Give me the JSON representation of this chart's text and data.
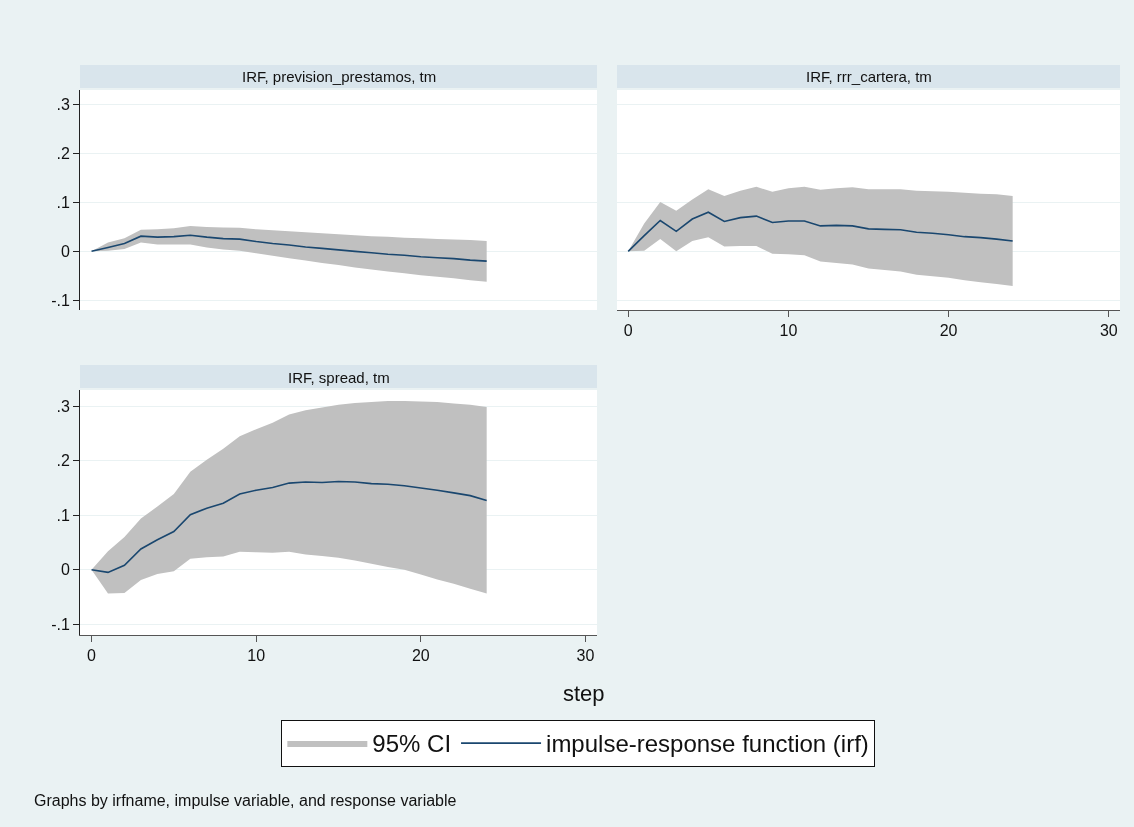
{
  "chart_data": [
    {
      "type": "line",
      "title": "IRF, prevision_prestamos, tm",
      "x": [
        0,
        1,
        2,
        3,
        4,
        5,
        6,
        7,
        8,
        9,
        10,
        11,
        12,
        13,
        14,
        15,
        16,
        17,
        18,
        19,
        20,
        21,
        22,
        23,
        24
      ],
      "series": [
        {
          "color": "#1a476f",
          "values": [
            0,
            0.008,
            0.016,
            0.031,
            0.029,
            0.03,
            0.033,
            0.029,
            0.026,
            0.025,
            0.02,
            0.016,
            0.013,
            0.009,
            0.006,
            0.003,
            0,
            -0.003,
            -0.006,
            -0.008,
            -0.011,
            -0.013,
            -0.015,
            -0.018,
            -0.02
          ],
          "lower": [
            0,
            0.001,
            0.005,
            0.018,
            0.014,
            0.014,
            0.014,
            0.008,
            0.004,
            0.001,
            -0.004,
            -0.009,
            -0.014,
            -0.019,
            -0.024,
            -0.028,
            -0.033,
            -0.037,
            -0.041,
            -0.045,
            -0.049,
            -0.052,
            -0.055,
            -0.059,
            -0.062
          ],
          "upper": [
            0,
            0.018,
            0.027,
            0.044,
            0.045,
            0.047,
            0.052,
            0.05,
            0.049,
            0.048,
            0.045,
            0.043,
            0.041,
            0.039,
            0.037,
            0.035,
            0.033,
            0.031,
            0.03,
            0.028,
            0.027,
            0.025,
            0.024,
            0.023,
            0.021
          ]
        }
      ],
      "xlim": [
        -0.7,
        30.7
      ],
      "ylim": [
        -0.12,
        0.33
      ],
      "xticks": [
        0,
        10,
        20,
        30
      ],
      "yticks": [
        {
          "value": -0.1,
          "label": "-.1"
        },
        0,
        {
          "value": 0.1,
          "label": ".1"
        },
        {
          "value": 0.2,
          "label": ".2"
        },
        {
          "value": 0.3,
          "label": ".3"
        }
      ],
      "tick_labels": "y",
      "grid": "y"
    },
    {
      "type": "line",
      "title": "IRF, rrr_cartera, tm",
      "x": [
        0,
        1,
        2,
        3,
        4,
        5,
        6,
        7,
        8,
        9,
        10,
        11,
        12,
        13,
        14,
        15,
        16,
        17,
        18,
        19,
        20,
        21,
        22,
        23,
        24
      ],
      "series": [
        {
          "color": "#1a476f",
          "values": [
            0,
            0.032,
            0.063,
            0.041,
            0.066,
            0.08,
            0.061,
            0.069,
            0.072,
            0.059,
            0.062,
            0.062,
            0.052,
            0.053,
            0.052,
            0.046,
            0.045,
            0.044,
            0.039,
            0.037,
            0.034,
            0.03,
            0.028,
            0.025,
            0.021
          ],
          "lower": [
            0,
            0.001,
            0.025,
            0,
            0.021,
            0.029,
            0.01,
            0.011,
            0.011,
            -0.005,
            -0.006,
            -0.008,
            -0.021,
            -0.024,
            -0.027,
            -0.035,
            -0.038,
            -0.041,
            -0.048,
            -0.051,
            -0.054,
            -0.059,
            -0.063,
            -0.067,
            -0.071
          ],
          "upper": [
            0,
            0.057,
            0.101,
            0.083,
            0.106,
            0.127,
            0.113,
            0.124,
            0.132,
            0.122,
            0.129,
            0.132,
            0.126,
            0.129,
            0.131,
            0.127,
            0.127,
            0.127,
            0.124,
            0.123,
            0.122,
            0.12,
            0.118,
            0.117,
            0.113
          ]
        }
      ],
      "xlim": [
        -0.7,
        30.7
      ],
      "ylim": [
        -0.12,
        0.33
      ],
      "xticks": [
        0,
        10,
        20,
        30
      ],
      "yticks": [
        {
          "value": -0.1,
          "label": null
        },
        {
          "value": 0,
          "label": null
        },
        {
          "value": 0.1,
          "label": null
        },
        {
          "value": 0.2,
          "label": null
        },
        {
          "value": 0.3,
          "label": null
        }
      ],
      "tick_labels": "x",
      "grid": "y"
    },
    {
      "type": "line",
      "title": "IRF, spread, tm",
      "xlabel": "step",
      "x": [
        0,
        1,
        2,
        3,
        4,
        5,
        6,
        7,
        8,
        9,
        10,
        11,
        12,
        13,
        14,
        15,
        16,
        17,
        18,
        19,
        20,
        21,
        22,
        23,
        24
      ],
      "series": [
        {
          "name": "impulse-response function (irf)",
          "color": "#1a476f",
          "values": [
            0,
            -0.005,
            0.008,
            0.038,
            0.055,
            0.07,
            0.101,
            0.113,
            0.122,
            0.139,
            0.146,
            0.151,
            0.159,
            0.161,
            0.16,
            0.162,
            0.161,
            0.158,
            0.157,
            0.154,
            0.15,
            0.146,
            0.141,
            0.136,
            0.127
          ],
          "lower": [
            0,
            -0.044,
            -0.043,
            -0.019,
            -0.008,
            -0.003,
            0.02,
            0.023,
            0.024,
            0.033,
            0.032,
            0.031,
            0.033,
            0.028,
            0.025,
            0.022,
            0.017,
            0.011,
            0.005,
            0,
            -0.009,
            -0.018,
            -0.026,
            -0.035,
            -0.044
          ],
          "upper": [
            0,
            0.034,
            0.06,
            0.094,
            0.116,
            0.139,
            0.18,
            0.202,
            0.222,
            0.245,
            0.258,
            0.27,
            0.285,
            0.293,
            0.298,
            0.303,
            0.306,
            0.308,
            0.31,
            0.31,
            0.309,
            0.308,
            0.305,
            0.303,
            0.299
          ]
        }
      ],
      "xlim": [
        -0.7,
        30.7
      ],
      "ylim": [
        -0.12,
        0.33
      ],
      "xticks": [
        0,
        10,
        20,
        30
      ],
      "yticks": [
        {
          "value": -0.1,
          "label": "-.1"
        },
        0,
        {
          "value": 0.1,
          "label": ".1"
        },
        {
          "value": 0.2,
          "label": ".2"
        },
        {
          "value": 0.3,
          "label": ".3"
        }
      ],
      "grid": "y",
      "legend": "bottom",
      "annotations": [
        "95% CI",
        "Graphs by irfname, impulse variable, and response variable"
      ]
    }
  ]
}
